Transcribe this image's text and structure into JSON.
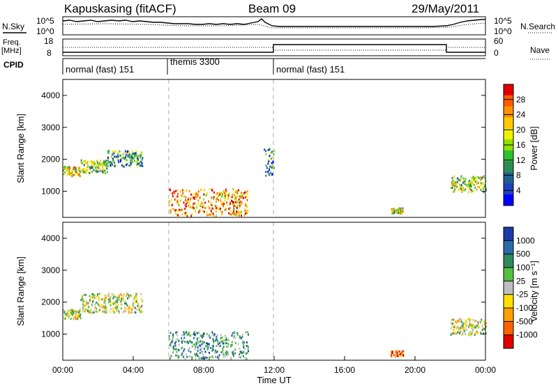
{
  "header": {
    "site": "Kapuskasing (fitACF)",
    "beam": "Beam 09",
    "date": "29/May/2011"
  },
  "top_panels": {
    "nsky_label": "N.Sky",
    "nsearch_label": "N.Search",
    "power_ticks_left": [
      "10^5",
      "10^0"
    ],
    "power_ticks_right": [
      "10^5",
      "10^0"
    ],
    "freq_label_top": "Freq.",
    "freq_label_unit": "[MHz]",
    "freq_ticks": [
      "18",
      "8"
    ],
    "nave_label": "Nave",
    "nave_ticks": [
      "60",
      "0"
    ],
    "cpid_label": "CPID",
    "cpid_segments": [
      {
        "label": "normal (fast) 151",
        "start_hour": 0,
        "end_hour": 6
      },
      {
        "label": "themis 3300",
        "start_hour": 6,
        "end_hour": 12
      },
      {
        "label": "normal (fast) 151",
        "start_hour": 12,
        "end_hour": 24
      }
    ]
  },
  "chart_data": [
    {
      "type": "heatmap",
      "title": "",
      "xlabel": "Time UT",
      "ylabel": "Slant Range [km]",
      "xlim_hours": [
        0,
        24
      ],
      "ylim": [
        180,
        4500
      ],
      "x_ticks": [
        "00:00",
        "04:00",
        "08:00",
        "12:00",
        "16:00",
        "20:00",
        "00:00"
      ],
      "y_ticks": [
        "1000",
        "2000",
        "3000",
        "4000"
      ],
      "colorbar": {
        "label": "Power [dB]",
        "ticks": [
          "28",
          "24",
          "20",
          "16",
          "12",
          "8",
          "4"
        ],
        "colors": [
          "#e00000",
          "#ff5a00",
          "#ff9000",
          "#ffc800",
          "#f0f000",
          "#90e000",
          "#30c030",
          "#2e8b57",
          "#1e5f8c",
          "#2040c0",
          "#0000ff"
        ]
      },
      "echo_regions": [
        {
          "t0": 0.0,
          "t1": 1.0,
          "r0": 1500,
          "r1": 1800,
          "level": 0.6
        },
        {
          "t0": 1.0,
          "t1": 2.5,
          "r0": 1600,
          "r1": 2000,
          "level": 0.5
        },
        {
          "t0": 2.5,
          "t1": 4.5,
          "r0": 1800,
          "r1": 2300,
          "level": 0.35
        },
        {
          "t0": 6.0,
          "t1": 10.5,
          "r0": 250,
          "r1": 1100,
          "level": 0.75
        },
        {
          "t0": 11.4,
          "t1": 12.0,
          "r0": 1500,
          "r1": 2400,
          "level": 0.3
        },
        {
          "t0": 18.6,
          "t1": 19.3,
          "r0": 330,
          "r1": 500,
          "level": 0.55
        },
        {
          "t0": 22.0,
          "t1": 24.0,
          "r0": 1000,
          "r1": 1500,
          "level": 0.5
        }
      ]
    },
    {
      "type": "heatmap",
      "title": "",
      "xlabel": "Time UT",
      "ylabel": "Slant Range [km]",
      "xlim_hours": [
        0,
        24
      ],
      "ylim": [
        180,
        4500
      ],
      "x_ticks": [
        "00:00",
        "04:00",
        "08:00",
        "12:00",
        "16:00",
        "20:00",
        "00:00"
      ],
      "y_ticks": [
        "1000",
        "2000",
        "3000",
        "4000"
      ],
      "colorbar": {
        "label": "Velocity [m s⁻¹]",
        "ticks": [
          "1000",
          "500",
          "100",
          "25",
          "-25",
          "-100",
          "-500",
          "-1000"
        ],
        "colors": [
          "#1c3aa8",
          "#2a6aa8",
          "#2e8a5a",
          "#55c040",
          "#bebebe",
          "#ffe000",
          "#ffa000",
          "#ff6000",
          "#e00000"
        ]
      },
      "echo_regions": [
        {
          "t0": 0.0,
          "t1": 1.0,
          "r0": 1500,
          "r1": 1800,
          "level": 0.0
        },
        {
          "t0": 1.0,
          "t1": 4.5,
          "r0": 1700,
          "r1": 2300,
          "level": 0.0
        },
        {
          "t0": 6.0,
          "t1": 10.5,
          "r0": 250,
          "r1": 1100,
          "level": 0.4
        },
        {
          "t0": 18.6,
          "t1": 19.3,
          "r0": 330,
          "r1": 500,
          "level": -0.6
        },
        {
          "t0": 22.0,
          "t1": 24.0,
          "r0": 1000,
          "r1": 1500,
          "level": 0.0
        }
      ]
    }
  ]
}
